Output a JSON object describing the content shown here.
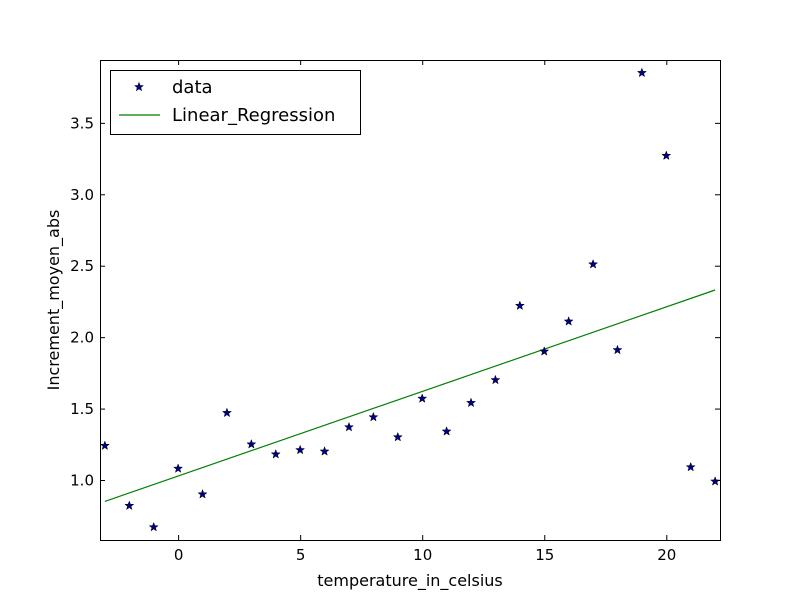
{
  "chart_data": {
    "type": "scatter",
    "title": "",
    "xlabel": "temperature_in_celsius",
    "ylabel": "Increment_moyen_abs",
    "xlim": [
      -3.2,
      22.2
    ],
    "ylim": [
      0.58,
      3.94
    ],
    "xticks": [
      0,
      5,
      10,
      15,
      20
    ],
    "xtick_labels": [
      "0",
      "5",
      "10",
      "15",
      "20"
    ],
    "yticks": [
      1.0,
      1.5,
      2.0,
      2.5,
      3.0,
      3.5
    ],
    "ytick_labels": [
      "1.0",
      "1.5",
      "2.0",
      "2.5",
      "3.0",
      "3.5"
    ],
    "grid": false,
    "legend_position": "top-left",
    "series": [
      {
        "name": "data",
        "kind": "scatter",
        "marker": "star",
        "color": "#00008b",
        "x": [
          -3,
          -2,
          -1,
          0,
          1,
          2,
          3,
          4,
          5,
          6,
          7,
          8,
          9,
          10,
          11,
          12,
          13,
          14,
          15,
          16,
          17,
          18,
          19,
          20,
          21,
          22
        ],
        "y": [
          1.24,
          0.82,
          0.67,
          1.08,
          0.9,
          1.47,
          1.25,
          1.18,
          1.21,
          1.2,
          1.37,
          1.44,
          1.3,
          1.57,
          1.34,
          1.54,
          1.7,
          2.22,
          1.9,
          2.11,
          2.51,
          1.91,
          3.85,
          3.27,
          1.09,
          0.99
        ]
      },
      {
        "name": "Linear_Regression",
        "kind": "line",
        "color": "#008000",
        "x": [
          -3,
          22
        ],
        "y": [
          0.85,
          2.33
        ]
      }
    ]
  }
}
